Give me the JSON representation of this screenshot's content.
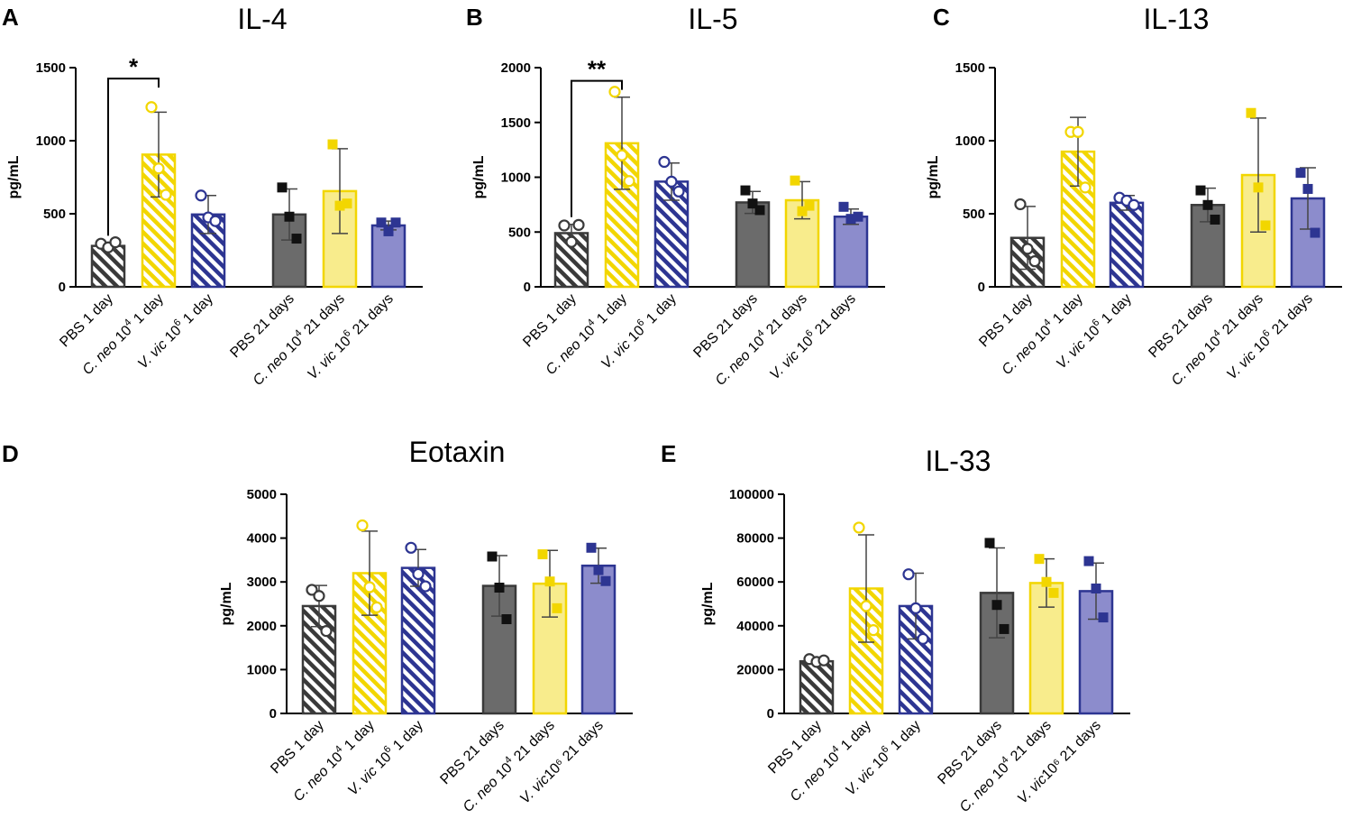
{
  "figure": {
    "palette": {
      "pbs": {
        "stroke": "#3a3a3a",
        "fill": "#6b6b6b"
      },
      "cneo": {
        "stroke": "#f2d600",
        "fill": "#f8ec8c"
      },
      "vvic": {
        "stroke": "#2d3592",
        "fill": "#8c8ccc"
      }
    }
  },
  "chart_data": [
    {
      "id": "A",
      "panel_label": "A",
      "type": "bar",
      "title": "IL-4",
      "ylabel": "pg/mL",
      "ylim": [
        0,
        1500
      ],
      "yticks": [
        "0",
        "500",
        "1000",
        "1500"
      ],
      "categories": [
        {
          "pre": "PBS 1 day",
          "sup": "",
          "post": "",
          "group": "pbs",
          "hatched": true
        },
        {
          "pre": "C. neo 10",
          "sup": "4",
          "post": " 1 day",
          "group": "cneo",
          "hatched": true
        },
        {
          "pre": "V. vic 10",
          "sup": "6",
          "post": " 1 day",
          "group": "vvic",
          "hatched": true
        },
        {
          "pre": "PBS 21 days",
          "sup": "",
          "post": "",
          "group": "pbs",
          "hatched": false
        },
        {
          "pre": "C. neo 10",
          "sup": "4",
          "post": " 21 days",
          "group": "cneo",
          "hatched": false
        },
        {
          "pre": "V. vic 10",
          "sup": "6",
          "post": " 21 days",
          "group": "vvic",
          "hatched": false
        }
      ],
      "means": [
        280,
        905,
        495,
        495,
        655,
        420
      ],
      "sd": [
        20,
        290,
        130,
        175,
        290,
        30
      ],
      "points": [
        [
          295,
          270,
          305
        ],
        [
          1230,
          810,
          630
        ],
        [
          625,
          475,
          450
        ],
        [
          680,
          480,
          330
        ],
        [
          975,
          555,
          570
        ],
        [
          440,
          380,
          440
        ]
      ],
      "significance": [
        {
          "from": 0,
          "to": 1,
          "label": "*",
          "y": 1425
        }
      ]
    },
    {
      "id": "B",
      "panel_label": "B",
      "type": "bar",
      "title": "IL-5",
      "ylabel": "pg/mL",
      "ylim": [
        0,
        2000
      ],
      "yticks": [
        "0",
        "500",
        "1000",
        "1500",
        "2000"
      ],
      "categories": [
        {
          "pre": "PBS 1 day",
          "sup": "",
          "post": "",
          "group": "pbs",
          "hatched": true
        },
        {
          "pre": "C. neo 10",
          "sup": "4",
          "post": " 1 day",
          "group": "cneo",
          "hatched": true
        },
        {
          "pre": "V. vic 10",
          "sup": "6",
          "post": " 1 day",
          "group": "vvic",
          "hatched": true
        },
        {
          "pre": "PBS 21 days",
          "sup": "",
          "post": "",
          "group": "pbs",
          "hatched": false
        },
        {
          "pre": "C. neo 10",
          "sup": "4",
          "post": " 21 days",
          "group": "cneo",
          "hatched": false
        },
        {
          "pre": "V. vic 10",
          "sup": "6",
          "post": " 21 days",
          "group": "vvic",
          "hatched": false
        }
      ],
      "means": [
        490,
        1310,
        960,
        770,
        790,
        640
      ],
      "sd": [
        80,
        420,
        170,
        100,
        170,
        70
      ],
      "points": [
        [
          560,
          410,
          565
        ],
        [
          1780,
          1200,
          965
        ],
        [
          1140,
          960,
          870
        ],
        [
          880,
          760,
          700
        ],
        [
          970,
          690,
          740
        ],
        [
          730,
          620,
          640
        ]
      ],
      "significance": [
        {
          "from": 0,
          "to": 1,
          "label": "**",
          "y": 1880
        }
      ]
    },
    {
      "id": "C",
      "panel_label": "C",
      "type": "bar",
      "title": "IL-13",
      "ylabel": "pg/mL",
      "ylim": [
        0,
        1500
      ],
      "yticks": [
        "0",
        "500",
        "1000",
        "1500"
      ],
      "categories": [
        {
          "pre": "PBS 1 day",
          "sup": "",
          "post": "",
          "group": "pbs",
          "hatched": true
        },
        {
          "pre": "C. neo 10",
          "sup": "4",
          "post": " 1 day",
          "group": "cneo",
          "hatched": true
        },
        {
          "pre": "V. vic 10",
          "sup": "6",
          "post": " 1 day",
          "group": "vvic",
          "hatched": true
        },
        {
          "pre": "PBS 21 days",
          "sup": "",
          "post": "",
          "group": "pbs",
          "hatched": false
        },
        {
          "pre": "C. neo 10",
          "sup": "4",
          "post": " 21 days",
          "group": "cneo",
          "hatched": false
        },
        {
          "pre": "V. vic 10",
          "sup": "6",
          "post": " 21 days",
          "group": "vvic",
          "hatched": false
        }
      ],
      "means": [
        335,
        925,
        575,
        560,
        765,
        605
      ],
      "sd": [
        215,
        235,
        50,
        115,
        390,
        210
      ],
      "points": [
        [
          565,
          260,
          175
        ],
        [
          1060,
          1060,
          680
        ],
        [
          610,
          590,
          560
        ],
        [
          660,
          560,
          460
        ],
        [
          1190,
          680,
          420
        ],
        [
          780,
          670,
          370
        ]
      ],
      "significance": []
    },
    {
      "id": "D",
      "panel_label": "D",
      "type": "bar",
      "title": "Eotaxin",
      "ylabel": "pg/mL",
      "ylim": [
        0,
        5000
      ],
      "yticks": [
        "0",
        "1000",
        "2000",
        "3000",
        "4000",
        "5000"
      ],
      "categories": [
        {
          "pre": "PBS 1 day",
          "sup": "",
          "post": "",
          "group": "pbs",
          "hatched": true
        },
        {
          "pre": "C. neo 10",
          "sup": "4",
          "post": " 1 day",
          "group": "cneo",
          "hatched": true
        },
        {
          "pre": "V. vic 10",
          "sup": "6",
          "post": " 1 day",
          "group": "vvic",
          "hatched": true
        },
        {
          "pre": "PBS 21 days",
          "sup": "",
          "post": "",
          "group": "pbs",
          "hatched": false
        },
        {
          "pre": "C. neo 10",
          "sup": "4",
          "post": " 21 days",
          "group": "cneo",
          "hatched": false
        },
        {
          "pre": "V. vic",
          "sup": "",
          "post": "10⁶ 21 days",
          "group": "vvic",
          "hatched": false
        }
      ],
      "means": [
        2450,
        3200,
        3320,
        2910,
        2960,
        3370
      ],
      "sd": [
        470,
        960,
        420,
        690,
        760,
        400
      ],
      "points": [
        [
          2820,
          2680,
          1880
        ],
        [
          4290,
          2880,
          2420
        ],
        [
          3780,
          3180,
          2900
        ],
        [
          3580,
          2870,
          2150
        ],
        [
          3630,
          3010,
          2400
        ],
        [
          3780,
          3270,
          3020
        ]
      ],
      "significance": []
    },
    {
      "id": "E",
      "panel_label": "E",
      "type": "bar",
      "title": "IL-33",
      "ylabel": "pg/mL",
      "ylim": [
        0,
        100000
      ],
      "yticks": [
        "0",
        "20000",
        "40000",
        "60000",
        "80000",
        "100000"
      ],
      "categories": [
        {
          "pre": "PBS 1 day",
          "sup": "",
          "post": "",
          "group": "pbs",
          "hatched": true
        },
        {
          "pre": "C. neo 10",
          "sup": "4",
          "post": " 1 day",
          "group": "cneo",
          "hatched": true
        },
        {
          "pre": "V. vic 10",
          "sup": "6",
          "post": " 1 day",
          "group": "vvic",
          "hatched": true
        },
        {
          "pre": "PBS 21 days",
          "sup": "",
          "post": "",
          "group": "pbs",
          "hatched": false
        },
        {
          "pre": "C. neo 10",
          "sup": "4",
          "post": " 21 days",
          "group": "cneo",
          "hatched": false
        },
        {
          "pre": "V. vic",
          "sup": "",
          "post": "10⁶ 21 days",
          "group": "vvic",
          "hatched": false
        }
      ],
      "means": [
        23800,
        57000,
        49000,
        55000,
        59500,
        55800
      ],
      "sd": [
        1200,
        24500,
        15000,
        20500,
        11000,
        12800
      ],
      "points": [
        [
          24800,
          23500,
          24200
        ],
        [
          84800,
          49000,
          38000
        ],
        [
          63500,
          48000,
          34000
        ],
        [
          77800,
          49500,
          38500
        ],
        [
          70500,
          60000,
          55000
        ],
        [
          69500,
          57000,
          43800
        ]
      ],
      "significance": []
    }
  ]
}
